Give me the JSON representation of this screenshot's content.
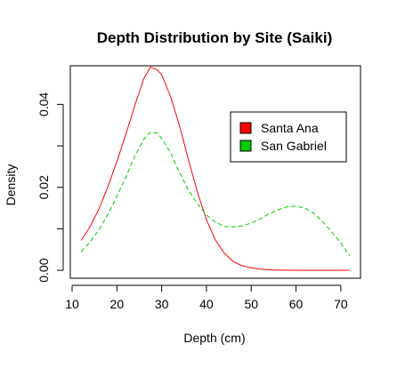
{
  "chart_data": {
    "type": "line",
    "title": "Depth Distribution by Site (Saiki)",
    "xlabel": "Depth (cm)",
    "ylabel": "Density",
    "xlim": [
      9.6,
      74.4
    ],
    "ylim": [
      -0.0019,
      0.0493
    ],
    "x_ticks": [
      10,
      20,
      30,
      40,
      50,
      60,
      70
    ],
    "y_ticks": [
      0.0,
      0.02,
      0.04
    ],
    "y_tick_labels": [
      "0.00",
      "0.02",
      "0.04"
    ],
    "y_minor_ticks": [
      0.01,
      0.03
    ],
    "legend_position": "top-right",
    "series": [
      {
        "name": "Santa Ana",
        "color": "#ff0000",
        "line_style": "solid",
        "x": [
          12,
          14,
          16,
          18,
          20,
          22,
          24,
          26,
          27.5,
          29,
          30,
          32,
          34,
          36,
          38,
          40,
          42,
          44,
          46,
          48,
          50,
          52,
          55,
          60,
          65,
          72
        ],
        "y": [
          0.0072,
          0.0105,
          0.0148,
          0.0202,
          0.0262,
          0.0328,
          0.0397,
          0.0462,
          0.049,
          0.0483,
          0.0472,
          0.0418,
          0.0348,
          0.0266,
          0.0188,
          0.0122,
          0.0073,
          0.0041,
          0.0021,
          0.0011,
          0.0006,
          0.0003,
          0.0001,
          0.0,
          0.0,
          0.0
        ]
      },
      {
        "name": "San Gabriel",
        "color": "#00cd00",
        "line_style": "dashed",
        "x": [
          12,
          14,
          16,
          18,
          20,
          22,
          24,
          26,
          27.5,
          29,
          30,
          32,
          34,
          36,
          38,
          40,
          42,
          44,
          46,
          48,
          50,
          52,
          54,
          56,
          58,
          60,
          62,
          64,
          66,
          68,
          70,
          72
        ],
        "y": [
          0.0045,
          0.0068,
          0.0098,
          0.0135,
          0.0178,
          0.0225,
          0.0275,
          0.0316,
          0.0333,
          0.0331,
          0.0318,
          0.0283,
          0.0235,
          0.0193,
          0.016,
          0.0133,
          0.0116,
          0.0106,
          0.0105,
          0.0107,
          0.0114,
          0.0124,
          0.0136,
          0.0146,
          0.0153,
          0.0155,
          0.015,
          0.0137,
          0.0117,
          0.0092,
          0.0066,
          0.0035
        ]
      }
    ]
  }
}
